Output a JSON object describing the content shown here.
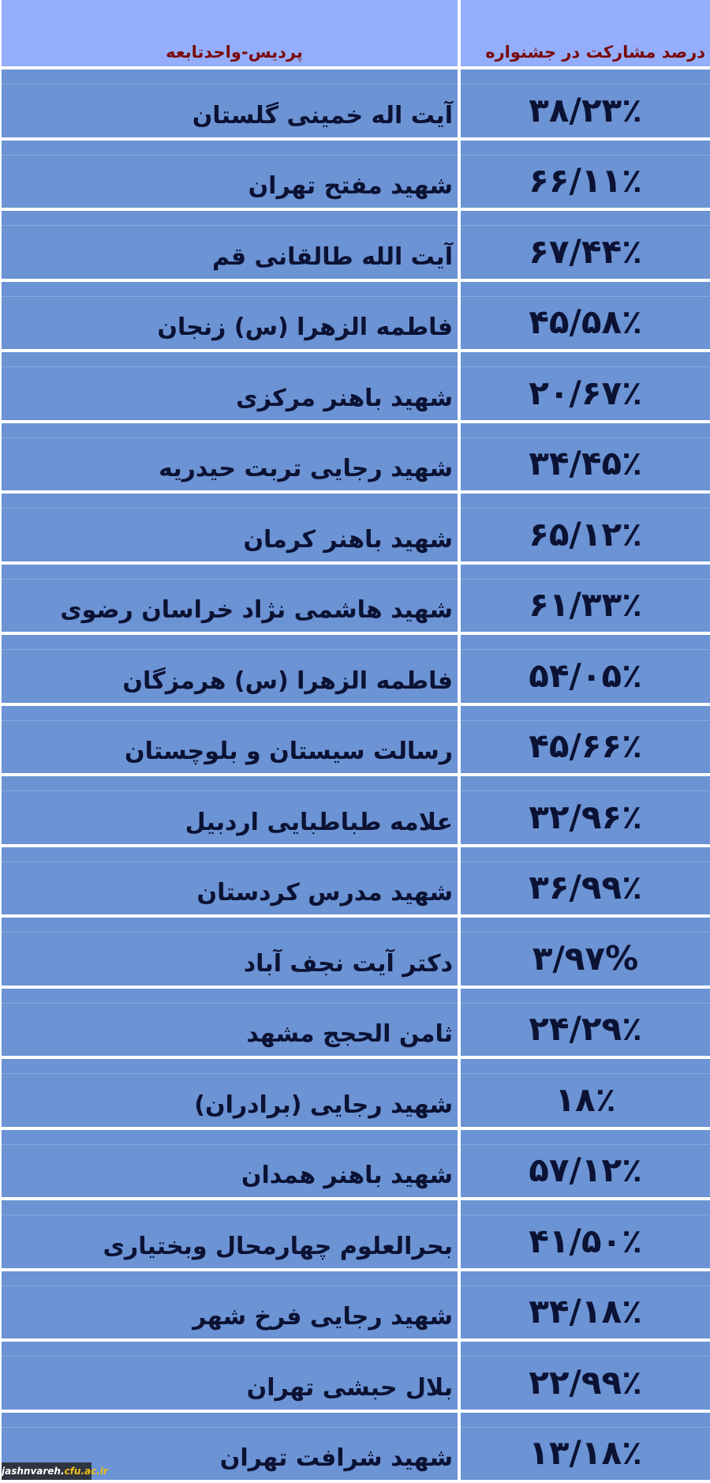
{
  "header": {
    "name_column": "پردیس-واحدتابعه",
    "percent_column": "درصد مشارکت در جشنواره"
  },
  "rows": [
    {
      "name": "آیت اله خمینی گلستان",
      "percent": "۳۸/۲۳٪"
    },
    {
      "name": "شهید مفتح تهران",
      "percent": "۶۶/۱۱٪"
    },
    {
      "name": "آیت الله طالقانی قم",
      "percent": "۶۷/۴۴٪"
    },
    {
      "name": "فاطمه الزهرا (س) زنجان",
      "percent": "۴۵/۵۸٪"
    },
    {
      "name": "شهید باهنر مرکزی",
      "percent": "۲۰/۶۷٪"
    },
    {
      "name": "شهید رجایی تربت حیدریه",
      "percent": "۳۴/۴۵٪"
    },
    {
      "name": "شهید باهنر کرمان",
      "percent": "۶۵/۱۲٪"
    },
    {
      "name": "شهید هاشمی نژاد خراسان رضوی",
      "percent": "۶۱/۳۳٪"
    },
    {
      "name": "فاطمه الزهرا (س) هرمزگان",
      "percent": "۵۴/۰۵٪"
    },
    {
      "name": "رسالت سیستان و بلوچستان",
      "percent": "۴۵/۶۶٪"
    },
    {
      "name": "علامه طباطبایی اردبیل",
      "percent": "۳۲/۹۶٪"
    },
    {
      "name": "شهید مدرس کردستان",
      "percent": "۳۶/۹۹٪"
    },
    {
      "name": "دکتر آیت نجف آباد",
      "percent": "۳/۹۷%"
    },
    {
      "name": "ثامن الحجج مشهد",
      "percent": "۲۴/۲۹٪"
    },
    {
      "name": "شهید رجایی (برادران)",
      "percent": "۱۸٪"
    },
    {
      "name": "شهید باهنر همدان",
      "percent": "۵۷/۱۲٪"
    },
    {
      "name": "بحرالعلوم چهارمحال وبختیاری",
      "percent": "۴۱/۵۰٪"
    },
    {
      "name": "شهید رجایی فرخ شهر",
      "percent": "۳۴/۱۸٪"
    },
    {
      "name": "بلال حبشی تهران",
      "percent": "۲۲/۹۹٪"
    },
    {
      "name": "شهید شرافت تهران",
      "percent": "۱۳/۱۸٪"
    }
  ],
  "watermark": {
    "prefix": "jashnvareh.",
    "domain": "cfu.ac.ir"
  },
  "colors": {
    "header_bg": "#94aefc",
    "row_bg": "#6c93d4",
    "header_text": "#7a0a0a",
    "body_text": "#0b1233"
  }
}
